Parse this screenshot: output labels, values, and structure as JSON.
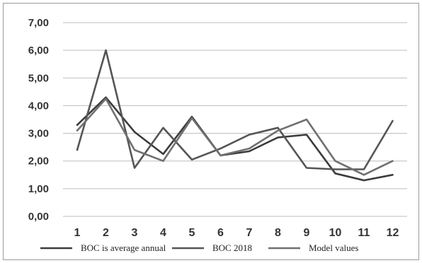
{
  "chart_data": {
    "type": "line",
    "title": "",
    "xlabel": "",
    "ylabel": "",
    "categories": [
      "1",
      "2",
      "3",
      "4",
      "5",
      "6",
      "7",
      "8",
      "9",
      "10",
      "11",
      "12"
    ],
    "y_ticks": [
      "0,00",
      "1,00",
      "2,00",
      "3,00",
      "4,00",
      "5,00",
      "6,00",
      "7,00"
    ],
    "ylim": [
      0,
      7
    ],
    "grid": true,
    "legend_position": "bottom",
    "series": [
      {
        "name": "BOC is average annual",
        "color": "#3c3c3c",
        "values": [
          3.3,
          4.3,
          3.05,
          2.25,
          3.6,
          2.2,
          2.35,
          2.85,
          2.95,
          1.55,
          1.3,
          1.5
        ]
      },
      {
        "name": "BOC 2018",
        "color": "#555555",
        "values": [
          2.4,
          6.0,
          1.75,
          3.2,
          2.05,
          2.45,
          2.95,
          3.2,
          1.75,
          1.7,
          1.7,
          3.45
        ]
      },
      {
        "name": "Model values",
        "color": "#707070",
        "values": [
          3.1,
          4.25,
          2.4,
          2.0,
          3.55,
          2.2,
          2.45,
          3.1,
          3.5,
          2.0,
          1.5,
          2.0
        ]
      }
    ]
  }
}
